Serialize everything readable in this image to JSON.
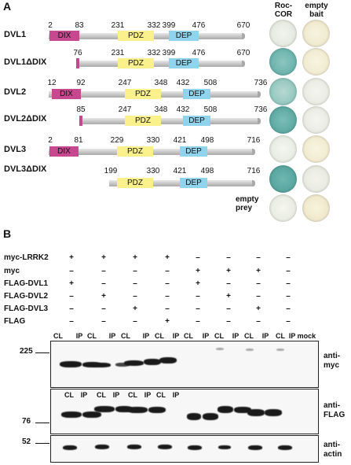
{
  "panel_a": {
    "label": "A",
    "col_headers": {
      "roc_cor": "Roc-\nCOR",
      "empty_bait": "empty\nbait"
    },
    "domain_labels": {
      "dix": "DIX",
      "pdz": "PDZ",
      "dep": "DEP"
    },
    "constructs": [
      {
        "name": "DVL1",
        "numbers": [
          "2",
          "83",
          "231",
          "332",
          "399",
          "476",
          "670"
        ]
      },
      {
        "name": "DVL1ΔDIX",
        "numbers": [
          "76",
          "231",
          "332",
          "399",
          "476",
          "670"
        ]
      },
      {
        "name": "DVL2",
        "numbers": [
          "12",
          "92",
          "247",
          "348",
          "432",
          "508",
          "736"
        ]
      },
      {
        "name": "DVL2ΔDIX",
        "numbers": [
          "85",
          "247",
          "348",
          "432",
          "508",
          "736"
        ]
      },
      {
        "name": "DVL3",
        "numbers": [
          "2",
          "81",
          "229",
          "330",
          "421",
          "498",
          "716"
        ]
      },
      {
        "name": "DVL3ΔDIX",
        "numbers": [
          "199",
          "330",
          "421",
          "498",
          "716"
        ]
      }
    ],
    "empty_prey": "empty\nprey",
    "spot_colors": {
      "blue_strong": "#5aa8a3",
      "blue_medium": "#7fbfb6",
      "pale_green": "#e9efe2",
      "pale_yellow": "#f3efd6"
    }
  },
  "panel_b": {
    "label": "B",
    "rows": [
      {
        "label": "myc-LRRK2",
        "marks": [
          "+",
          "+",
          "+",
          "+",
          "–",
          "–",
          "–",
          "–"
        ]
      },
      {
        "label": "myc",
        "marks": [
          "–",
          "–",
          "–",
          "–",
          "+",
          "+",
          "+",
          "–"
        ]
      },
      {
        "label": "FLAG-DVL1",
        "marks": [
          "+",
          "–",
          "–",
          "–",
          "+",
          "–",
          "–",
          "–"
        ]
      },
      {
        "label": "FLAG-DVL2",
        "marks": [
          "–",
          "+",
          "–",
          "–",
          "–",
          "+",
          "–",
          "–"
        ]
      },
      {
        "label": "FLAG-DVL3",
        "marks": [
          "–",
          "–",
          "+",
          "–",
          "–",
          "–",
          "+",
          "–"
        ]
      },
      {
        "label": "FLAG",
        "marks": [
          "–",
          "–",
          "–",
          "+",
          "–",
          "–",
          "–",
          "–"
        ]
      }
    ],
    "lanes_top": [
      "CL",
      "IP",
      "CL",
      "IP",
      "CL",
      "IP",
      "CL",
      "IP",
      "CL",
      "IP",
      "CL",
      "IP",
      "CL",
      "IP",
      "CL",
      "IP mock"
    ],
    "lanes_mid": [
      "CL",
      "IP",
      "CL",
      "IP",
      "CL",
      "IP",
      "CL",
      "IP"
    ],
    "markers": [
      "225",
      "76",
      "52"
    ],
    "antibodies": {
      "myc": "anti-\nmyc",
      "flag": "anti-\nFLAG",
      "actin": "anti-\nactin"
    }
  }
}
